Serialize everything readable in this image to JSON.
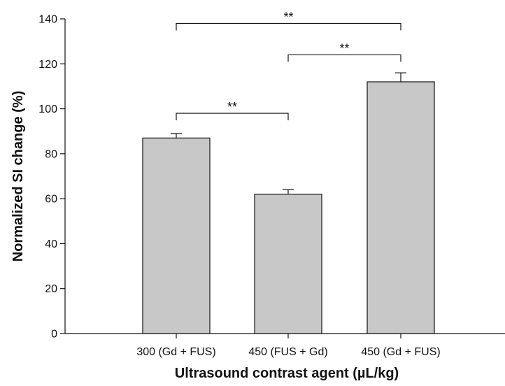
{
  "chart_data": {
    "type": "bar",
    "title": "",
    "xlabel": "Ultrasound contrast agent (µL/kg)",
    "ylabel": "Normalized SI change (%)",
    "ylim": [
      0,
      140
    ],
    "yticks": [
      0,
      20,
      40,
      60,
      80,
      100,
      120,
      140
    ],
    "categories": [
      "300 (Gd + FUS)",
      "450 (FUS + Gd)",
      "450 (Gd + FUS)"
    ],
    "values": [
      87,
      62,
      112
    ],
    "errors": [
      2,
      2,
      4
    ],
    "bar_color": "#c8c8c8",
    "grid": false,
    "significance": [
      {
        "from": 0,
        "to": 1,
        "label": "**",
        "y": 98
      },
      {
        "from": 1,
        "to": 2,
        "label": "**",
        "y": 124
      },
      {
        "from": 0,
        "to": 2,
        "label": "**",
        "y": 138
      }
    ]
  }
}
